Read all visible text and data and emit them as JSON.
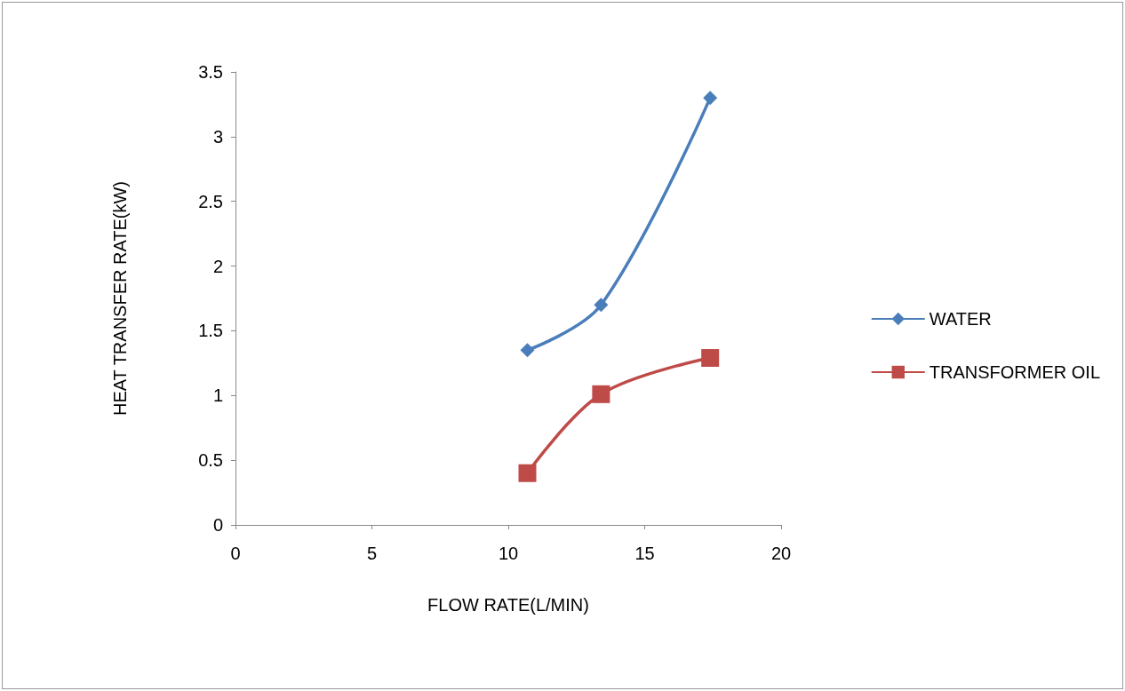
{
  "chart_data": {
    "type": "line",
    "xlabel": "FLOW RATE(L/MIN)",
    "ylabel": "HEAT TRANSFER RATE(kW)",
    "xlim": [
      0,
      20
    ],
    "xticks": [
      0,
      5,
      10,
      15,
      20
    ],
    "ylim": [
      0,
      3.5
    ],
    "yticks": [
      0,
      0.5,
      1,
      1.5,
      2,
      2.5,
      3,
      3.5
    ],
    "grid": false,
    "legend": "right",
    "series": [
      {
        "name": "WATER",
        "color": "#4a7ebb",
        "marker": "diamond",
        "x": [
          10.7,
          13.4,
          17.4
        ],
        "values": [
          1.35,
          1.7,
          3.3
        ]
      },
      {
        "name": "TRANSFORMER OIL",
        "color": "#be4b48",
        "marker": "square",
        "x": [
          10.7,
          13.4,
          17.4
        ],
        "values": [
          0.4,
          1.01,
          1.29
        ]
      }
    ]
  }
}
